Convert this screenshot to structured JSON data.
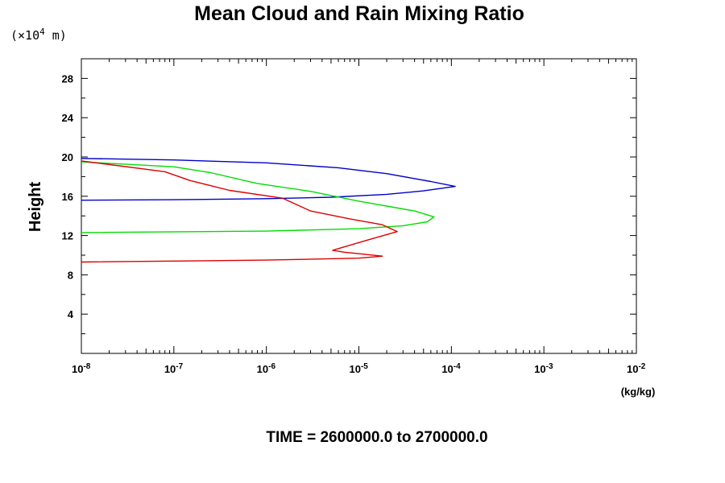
{
  "chart_data": {
    "type": "line",
    "title": "Mean Cloud and Rain Mixing Ratio",
    "height_unit_prefix": "(×10",
    "height_unit_exp": "4",
    "height_unit_suffix": " m)",
    "ylabel": "Height",
    "xlabel": "(kg/kg)",
    "footer": "TIME = 2600000.0 to 2700000.0",
    "x_scale": "log",
    "xlim": [
      1e-08,
      0.01
    ],
    "ylim": [
      0,
      30
    ],
    "y_ticks": [
      "4",
      "8",
      "12",
      "16",
      "20",
      "24",
      "28"
    ],
    "x_ticks": [
      {
        "base": "10",
        "exp": "-8"
      },
      {
        "base": "10",
        "exp": "-7"
      },
      {
        "base": "10",
        "exp": "-6"
      },
      {
        "base": "10",
        "exp": "-5"
      },
      {
        "base": "10",
        "exp": "-4"
      },
      {
        "base": "10",
        "exp": "-3"
      },
      {
        "base": "10",
        "exp": "-2"
      }
    ],
    "grid": false,
    "legend": "none",
    "series": [
      {
        "color": "#0000cc",
        "points": [
          [
            1e-08,
            15.6
          ],
          [
            1e-07,
            15.65
          ],
          [
            1e-06,
            15.75
          ],
          [
            5e-06,
            15.9
          ],
          [
            2e-05,
            16.2
          ],
          [
            5e-05,
            16.55
          ],
          [
            0.00011,
            17.0
          ],
          [
            6e-05,
            17.5
          ],
          [
            2e-05,
            18.3
          ],
          [
            6e-06,
            18.9
          ],
          [
            1e-06,
            19.4
          ],
          [
            1e-07,
            19.7
          ],
          [
            1e-08,
            19.85
          ]
        ]
      },
      {
        "color": "#00dd00",
        "points": [
          [
            1e-08,
            12.3
          ],
          [
            1e-06,
            12.45
          ],
          [
            1e-05,
            12.7
          ],
          [
            3e-05,
            13.0
          ],
          [
            5.5e-05,
            13.4
          ],
          [
            6.5e-05,
            13.9
          ],
          [
            4e-05,
            14.5
          ],
          [
            2e-05,
            15.0
          ],
          [
            1e-05,
            15.5
          ],
          [
            3e-06,
            16.5
          ],
          [
            8e-07,
            17.3
          ],
          [
            2.5e-07,
            18.4
          ],
          [
            1e-07,
            19.0
          ],
          [
            1e-08,
            19.5
          ]
        ]
      },
      {
        "color": "#dd0000",
        "points": [
          [
            1e-08,
            9.3
          ],
          [
            1e-06,
            9.5
          ],
          [
            1e-05,
            9.7
          ],
          [
            1.8e-05,
            9.9
          ],
          [
            7e-06,
            10.3
          ],
          [
            5.2e-06,
            10.5
          ],
          [
            1.2e-05,
            11.5
          ],
          [
            2.6e-05,
            12.4
          ],
          [
            1.8e-05,
            13.1
          ],
          [
            8e-06,
            13.7
          ],
          [
            3e-06,
            14.5
          ],
          [
            1.5e-06,
            15.8
          ],
          [
            4e-07,
            16.6
          ],
          [
            1.5e-07,
            17.6
          ],
          [
            8e-08,
            18.5
          ],
          [
            1e-08,
            19.6
          ]
        ]
      }
    ]
  }
}
